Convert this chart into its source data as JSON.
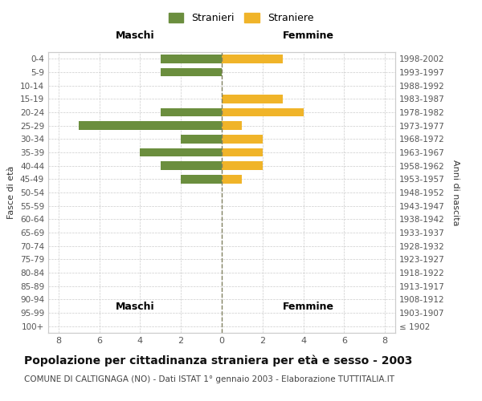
{
  "age_groups": [
    "100+",
    "95-99",
    "90-94",
    "85-89",
    "80-84",
    "75-79",
    "70-74",
    "65-69",
    "60-64",
    "55-59",
    "50-54",
    "45-49",
    "40-44",
    "35-39",
    "30-34",
    "25-29",
    "20-24",
    "15-19",
    "10-14",
    "5-9",
    "0-4"
  ],
  "birth_years": [
    "≤ 1902",
    "1903-1907",
    "1908-1912",
    "1913-1917",
    "1918-1922",
    "1923-1927",
    "1928-1932",
    "1933-1937",
    "1938-1942",
    "1943-1947",
    "1948-1952",
    "1953-1957",
    "1958-1962",
    "1963-1967",
    "1968-1972",
    "1973-1977",
    "1978-1982",
    "1983-1987",
    "1988-1992",
    "1993-1997",
    "1998-2002"
  ],
  "males": [
    0,
    0,
    0,
    0,
    0,
    0,
    0,
    0,
    0,
    0,
    0,
    2,
    3,
    4,
    2,
    7,
    3,
    0,
    0,
    3,
    3
  ],
  "females": [
    0,
    0,
    0,
    0,
    0,
    0,
    0,
    0,
    0,
    0,
    0,
    1,
    2,
    2,
    2,
    1,
    4,
    3,
    0,
    0,
    3
  ],
  "male_color": "#6b8e3e",
  "female_color": "#f0b429",
  "background_color": "#ffffff",
  "grid_color": "#cccccc",
  "zero_line_color": "#808060",
  "title": "Popolazione per cittadinanza straniera per età e sesso - 2003",
  "subtitle": "COMUNE DI CALTIGNAGA (NO) - Dati ISTAT 1° gennaio 2003 - Elaborazione TUTTITALIA.IT",
  "xlabel_left": "Maschi",
  "xlabel_right": "Femmine",
  "ylabel_left": "Fasce di età",
  "ylabel_right": "Anni di nascita",
  "legend_male": "Stranieri",
  "legend_female": "Straniere",
  "xlim": 8.5,
  "title_fontsize": 10,
  "subtitle_fontsize": 7.5
}
